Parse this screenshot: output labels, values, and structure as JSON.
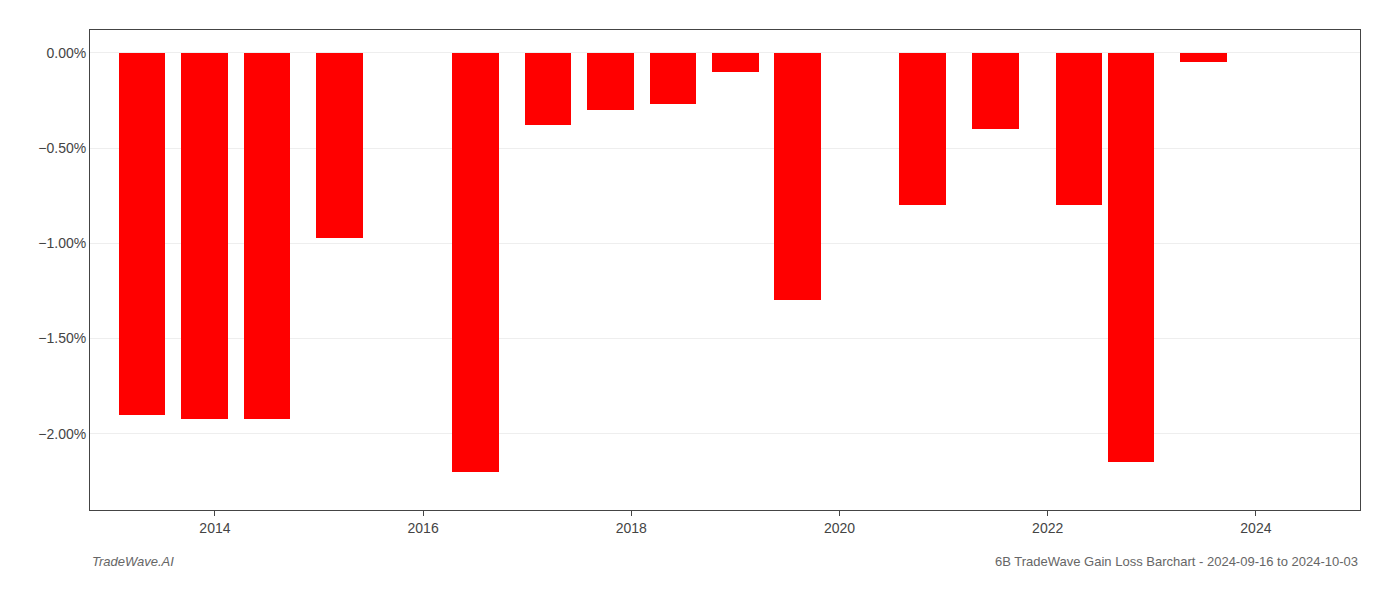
{
  "chart_data": {
    "type": "bar",
    "x": [
      2013.3,
      2013.9,
      2014.5,
      2015.2,
      2016.5,
      2017.2,
      2017.8,
      2018.4,
      2019.0,
      2019.6,
      2020.8,
      2021.5,
      2022.3,
      2022.8,
      2023.5,
      2023.95
    ],
    "values": [
      -1.9,
      -1.92,
      -1.92,
      -0.97,
      -2.2,
      -0.38,
      -0.3,
      -0.27,
      -0.1,
      -1.3,
      -0.8,
      -0.4,
      -0.8,
      -2.15,
      -0.05,
      0.0
    ],
    "color": "#ff0000",
    "xlim": [
      2012.8,
      2025.0
    ],
    "xticks": [
      2014,
      2016,
      2018,
      2020,
      2022,
      2024
    ],
    "ylim": [
      -2.4,
      0.12
    ],
    "yticks": [
      {
        "value": 0.0,
        "label": "0.00%"
      },
      {
        "value": -0.5,
        "label": "−0.50%"
      },
      {
        "value": -1.0,
        "label": "−1.00%"
      },
      {
        "value": -1.5,
        "label": "−1.50%"
      },
      {
        "value": -2.0,
        "label": "−2.00%"
      }
    ],
    "grid": true,
    "annotations": [
      "TradeWave.AI",
      "6B TradeWave Gain Loss Barchart - 2024-09-16 to 2024-10-03"
    ]
  }
}
